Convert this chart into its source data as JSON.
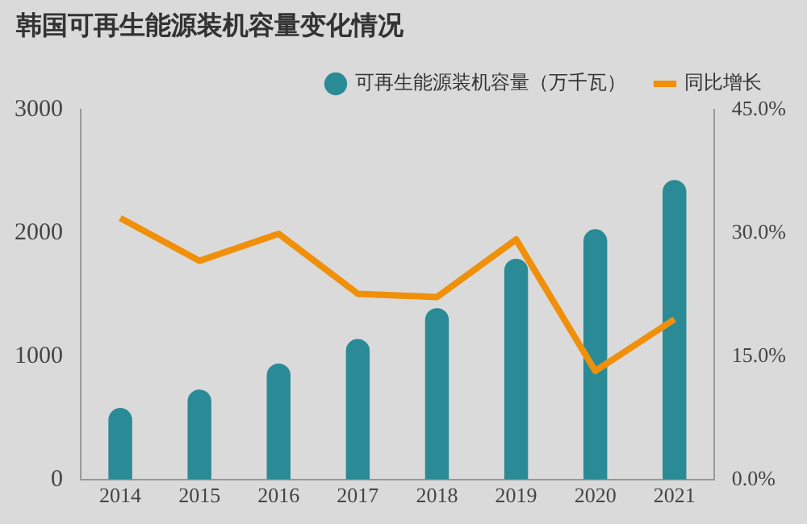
{
  "chart_data": {
    "type": "bar",
    "title": "韩国可再生能源装机容量变化情况",
    "categories": [
      "2014",
      "2015",
      "2016",
      "2017",
      "2018",
      "2019",
      "2020",
      "2021"
    ],
    "series": [
      {
        "name": "可再生能源装机容量（万千瓦）",
        "color": "#2a8a96",
        "values": [
          580,
          730,
          940,
          1140,
          1390,
          1790,
          2030,
          2430
        ]
      },
      {
        "name": "同比增长",
        "type": "line",
        "axis": "y2",
        "color": "#f0900a",
        "values": [
          31.8,
          26.6,
          29.9,
          22.6,
          22.2,
          29.2,
          13.2,
          19.5
        ]
      }
    ],
    "ylim": [
      0,
      3000
    ],
    "yticks": [
      0,
      1000,
      2000,
      3000
    ],
    "y2lim": [
      0,
      45
    ],
    "y2ticks": [
      {
        "value": 0,
        "label": "0.0%"
      },
      {
        "value": 15,
        "label": "15.0%"
      },
      {
        "value": 30,
        "label": "30.0%"
      },
      {
        "value": 45,
        "label": "45.0%"
      }
    ],
    "legend": "top right",
    "grid": false,
    "marker": "none",
    "line_style": "solid"
  }
}
